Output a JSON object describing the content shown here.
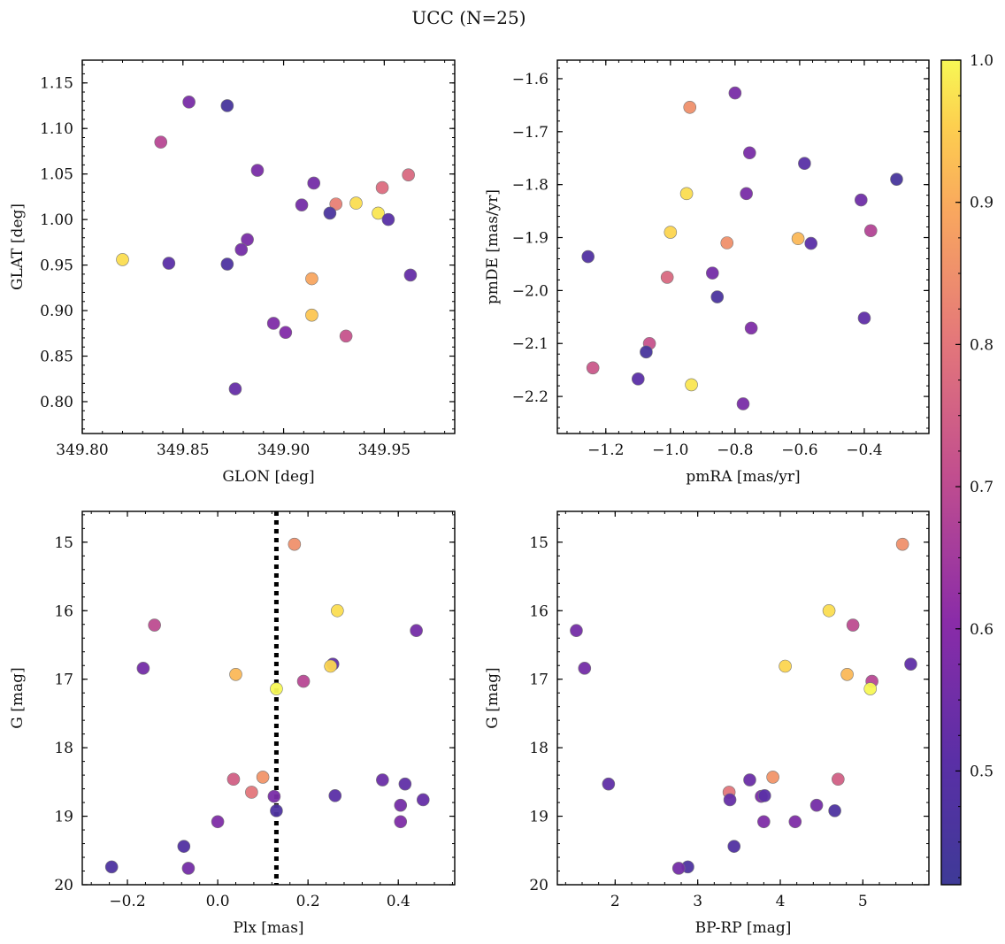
{
  "figure": {
    "title": "UCC (N=25)"
  },
  "colorbar": {
    "colormap": "plasma",
    "range": [
      0.42,
      1.0
    ],
    "ticks": [
      0.5,
      0.6,
      0.7,
      0.8,
      0.9,
      1.0
    ],
    "tick_labels": [
      "0.5",
      "0.6",
      "0.7",
      "0.8",
      "0.9",
      "1.0"
    ]
  },
  "chart_data": [
    {
      "type": "scatter",
      "id": "glon_glat",
      "xlabel": "GLON [deg]",
      "ylabel": "GLAT [deg]",
      "xlim": [
        349.8,
        349.985
      ],
      "ylim": [
        0.765,
        1.175
      ],
      "y_inverted": false,
      "xticks": [
        349.8,
        349.85,
        349.9,
        349.95
      ],
      "xtick_labels": [
        "349.80",
        "349.85",
        "349.90",
        "349.95"
      ],
      "yticks": [
        0.8,
        0.85,
        0.9,
        0.95,
        1.0,
        1.05,
        1.1,
        1.15
      ],
      "ytick_labels": [
        "0.80",
        "0.85",
        "0.90",
        "0.95",
        "1.00",
        "1.05",
        "1.10",
        "1.15"
      ],
      "points": [
        {
          "x": 349.853,
          "y": 1.129,
          "c": 0.57
        },
        {
          "x": 349.872,
          "y": 1.125,
          "c": 0.45
        },
        {
          "x": 349.839,
          "y": 1.085,
          "c": 0.69
        },
        {
          "x": 349.887,
          "y": 1.054,
          "c": 0.57
        },
        {
          "x": 349.915,
          "y": 1.04,
          "c": 0.56
        },
        {
          "x": 349.962,
          "y": 1.049,
          "c": 0.77
        },
        {
          "x": 349.949,
          "y": 1.035,
          "c": 0.78
        },
        {
          "x": 349.909,
          "y": 1.016,
          "c": 0.56
        },
        {
          "x": 349.926,
          "y": 1.017,
          "c": 0.82
        },
        {
          "x": 349.936,
          "y": 1.018,
          "c": 0.97
        },
        {
          "x": 349.923,
          "y": 1.007,
          "c": 0.46
        },
        {
          "x": 349.947,
          "y": 1.007,
          "c": 0.98
        },
        {
          "x": 349.952,
          "y": 1.0,
          "c": 0.5
        },
        {
          "x": 349.882,
          "y": 0.978,
          "c": 0.57
        },
        {
          "x": 349.879,
          "y": 0.967,
          "c": 0.56
        },
        {
          "x": 349.82,
          "y": 0.956,
          "c": 0.97
        },
        {
          "x": 349.843,
          "y": 0.952,
          "c": 0.51
        },
        {
          "x": 349.872,
          "y": 0.951,
          "c": 0.47
        },
        {
          "x": 349.914,
          "y": 0.935,
          "c": 0.89
        },
        {
          "x": 349.963,
          "y": 0.939,
          "c": 0.53
        },
        {
          "x": 349.895,
          "y": 0.886,
          "c": 0.58
        },
        {
          "x": 349.901,
          "y": 0.876,
          "c": 0.59
        },
        {
          "x": 349.914,
          "y": 0.895,
          "c": 0.94
        },
        {
          "x": 349.931,
          "y": 0.872,
          "c": 0.72
        },
        {
          "x": 349.876,
          "y": 0.814,
          "c": 0.53
        }
      ]
    },
    {
      "type": "scatter",
      "id": "pmra_pmde",
      "xlabel": "pmRA [mas/yr]",
      "ylabel": "pmDE [mas/yr]",
      "xlim": [
        -1.35,
        -0.2
      ],
      "ylim": [
        -2.27,
        -1.565
      ],
      "y_inverted": false,
      "xticks": [
        -1.2,
        -1.0,
        -0.8,
        -0.6,
        -0.4
      ],
      "xtick_labels": [
        "−1.2",
        "−1.0",
        "−0.8",
        "−0.6",
        "−0.4"
      ],
      "yticks": [
        -2.2,
        -2.1,
        -2.0,
        -1.9,
        -1.8,
        -1.7,
        -1.6
      ],
      "ytick_labels": [
        "−2.2",
        "−2.1",
        "−2.0",
        "−1.9",
        "−1.8",
        "−1.7",
        "−1.6"
      ],
      "points": [
        {
          "x": -0.8,
          "y": -1.627,
          "c": 0.57
        },
        {
          "x": -0.94,
          "y": -1.654,
          "c": 0.85
        },
        {
          "x": -0.755,
          "y": -1.74,
          "c": 0.57
        },
        {
          "x": -0.585,
          "y": -1.76,
          "c": 0.5
        },
        {
          "x": -0.3,
          "y": -1.79,
          "c": 0.45
        },
        {
          "x": -0.95,
          "y": -1.817,
          "c": 0.97
        },
        {
          "x": -0.765,
          "y": -1.817,
          "c": 0.57
        },
        {
          "x": -0.41,
          "y": -1.829,
          "c": 0.55
        },
        {
          "x": -0.38,
          "y": -1.887,
          "c": 0.68
        },
        {
          "x": -1.0,
          "y": -1.89,
          "c": 0.96
        },
        {
          "x": -0.605,
          "y": -1.902,
          "c": 0.92
        },
        {
          "x": -0.825,
          "y": -1.91,
          "c": 0.85
        },
        {
          "x": -0.565,
          "y": -1.911,
          "c": 0.51
        },
        {
          "x": -1.255,
          "y": -1.936,
          "c": 0.48
        },
        {
          "x": -0.87,
          "y": -1.967,
          "c": 0.56
        },
        {
          "x": -1.01,
          "y": -1.975,
          "c": 0.77
        },
        {
          "x": -0.855,
          "y": -2.012,
          "c": 0.46
        },
        {
          "x": -0.4,
          "y": -2.052,
          "c": 0.52
        },
        {
          "x": -0.75,
          "y": -2.071,
          "c": 0.58
        },
        {
          "x": -1.065,
          "y": -2.1,
          "c": 0.72
        },
        {
          "x": -1.075,
          "y": -2.116,
          "c": 0.45
        },
        {
          "x": -1.24,
          "y": -2.146,
          "c": 0.73
        },
        {
          "x": -1.1,
          "y": -2.167,
          "c": 0.51
        },
        {
          "x": -0.935,
          "y": -2.178,
          "c": 0.98
        },
        {
          "x": -0.775,
          "y": -2.214,
          "c": 0.57
        }
      ]
    },
    {
      "type": "scatter",
      "id": "plx_g",
      "xlabel": "Plx [mas]",
      "ylabel": "G [mag]",
      "xlim": [
        -0.3,
        0.525
      ],
      "ylim": [
        14.55,
        20.0
      ],
      "y_inverted": true,
      "xticks": [
        -0.2,
        0.0,
        0.2,
        0.4
      ],
      "xtick_labels": [
        "−0.2",
        "0.0",
        "0.2",
        "0.4"
      ],
      "yticks": [
        15,
        16,
        17,
        18,
        19,
        20
      ],
      "ytick_labels": [
        "15",
        "16",
        "17",
        "18",
        "19",
        "20"
      ],
      "vline": {
        "x": 0.13,
        "style": "dotted",
        "color": "#000000"
      },
      "points": [
        {
          "x": 0.17,
          "y": 15.03,
          "c": 0.85
        },
        {
          "x": 0.265,
          "y": 16.0,
          "c": 0.97
        },
        {
          "x": -0.14,
          "y": 16.21,
          "c": 0.7
        },
        {
          "x": 0.44,
          "y": 16.29,
          "c": 0.56
        },
        {
          "x": 0.255,
          "y": 16.78,
          "c": 0.52
        },
        {
          "x": 0.25,
          "y": 16.81,
          "c": 0.96
        },
        {
          "x": -0.165,
          "y": 16.84,
          "c": 0.56
        },
        {
          "x": 0.04,
          "y": 16.93,
          "c": 0.92
        },
        {
          "x": 0.19,
          "y": 17.03,
          "c": 0.69
        },
        {
          "x": 0.13,
          "y": 17.14,
          "c": 1.0
        },
        {
          "x": 0.035,
          "y": 18.46,
          "c": 0.75
        },
        {
          "x": 0.1,
          "y": 18.43,
          "c": 0.86
        },
        {
          "x": 0.365,
          "y": 18.47,
          "c": 0.54
        },
        {
          "x": 0.415,
          "y": 18.53,
          "c": 0.52
        },
        {
          "x": 0.075,
          "y": 18.65,
          "c": 0.8
        },
        {
          "x": 0.125,
          "y": 18.71,
          "c": 0.57
        },
        {
          "x": 0.26,
          "y": 18.7,
          "c": 0.51
        },
        {
          "x": 0.455,
          "y": 18.76,
          "c": 0.53
        },
        {
          "x": 0.405,
          "y": 18.84,
          "c": 0.56
        },
        {
          "x": 0.13,
          "y": 18.92,
          "c": 0.47
        },
        {
          "x": 0.0,
          "y": 19.08,
          "c": 0.58
        },
        {
          "x": 0.405,
          "y": 19.08,
          "c": 0.58
        },
        {
          "x": -0.075,
          "y": 19.44,
          "c": 0.48
        },
        {
          "x": -0.235,
          "y": 19.74,
          "c": 0.47
        },
        {
          "x": -0.065,
          "y": 19.76,
          "c": 0.56
        }
      ]
    },
    {
      "type": "scatter",
      "id": "bprp_g",
      "xlabel": "BP-RP [mag]",
      "ylabel": "G [mag]",
      "xlim": [
        1.3,
        5.8
      ],
      "ylim": [
        14.55,
        20.0
      ],
      "y_inverted": true,
      "xticks": [
        2,
        3,
        4,
        5
      ],
      "xtick_labels": [
        "2",
        "3",
        "4",
        "5"
      ],
      "yticks": [
        15,
        16,
        17,
        18,
        19,
        20
      ],
      "ytick_labels": [
        "15",
        "16",
        "17",
        "18",
        "19",
        "20"
      ],
      "points": [
        {
          "x": 5.48,
          "y": 15.03,
          "c": 0.85
        },
        {
          "x": 4.59,
          "y": 16.0,
          "c": 0.97
        },
        {
          "x": 4.88,
          "y": 16.21,
          "c": 0.7
        },
        {
          "x": 1.53,
          "y": 16.29,
          "c": 0.56
        },
        {
          "x": 5.58,
          "y": 16.78,
          "c": 0.52
        },
        {
          "x": 4.06,
          "y": 16.81,
          "c": 0.96
        },
        {
          "x": 1.63,
          "y": 16.84,
          "c": 0.56
        },
        {
          "x": 4.81,
          "y": 16.93,
          "c": 0.92
        },
        {
          "x": 5.11,
          "y": 17.03,
          "c": 0.69
        },
        {
          "x": 5.09,
          "y": 17.14,
          "c": 1.0
        },
        {
          "x": 3.91,
          "y": 18.43,
          "c": 0.86
        },
        {
          "x": 3.63,
          "y": 18.47,
          "c": 0.54
        },
        {
          "x": 4.7,
          "y": 18.46,
          "c": 0.75
        },
        {
          "x": 1.92,
          "y": 18.53,
          "c": 0.52
        },
        {
          "x": 3.38,
          "y": 18.65,
          "c": 0.8
        },
        {
          "x": 3.77,
          "y": 18.71,
          "c": 0.57
        },
        {
          "x": 3.81,
          "y": 18.7,
          "c": 0.51
        },
        {
          "x": 3.39,
          "y": 18.76,
          "c": 0.53
        },
        {
          "x": 4.44,
          "y": 18.84,
          "c": 0.56
        },
        {
          "x": 4.66,
          "y": 18.92,
          "c": 0.47
        },
        {
          "x": 3.8,
          "y": 19.08,
          "c": 0.58
        },
        {
          "x": 4.18,
          "y": 19.08,
          "c": 0.58
        },
        {
          "x": 3.44,
          "y": 19.44,
          "c": 0.48
        },
        {
          "x": 2.88,
          "y": 19.74,
          "c": 0.47
        },
        {
          "x": 2.77,
          "y": 19.76,
          "c": 0.56
        }
      ]
    }
  ]
}
